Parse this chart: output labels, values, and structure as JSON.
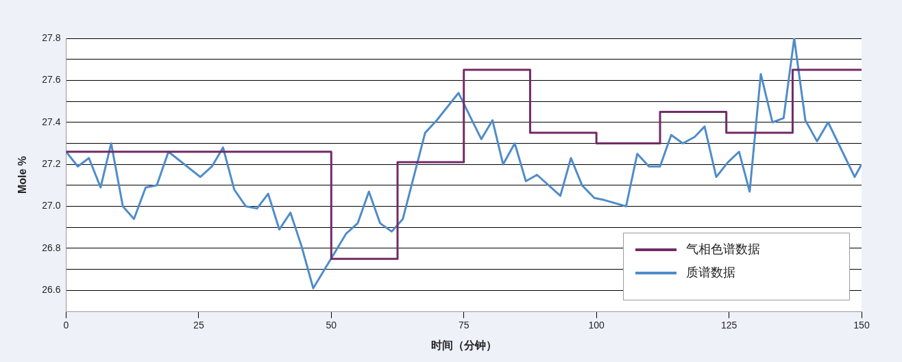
{
  "chart_data": {
    "type": "line",
    "xlabel": "时间（分钟）",
    "ylabel": "Mole %",
    "xlim": [
      0,
      150
    ],
    "xticks": [
      0,
      25,
      50,
      75,
      100,
      125,
      150
    ],
    "ylim": [
      26.5,
      27.8
    ],
    "yticks": [
      26.6,
      {
        "value": 26.7,
        "label": null
      },
      26.8,
      {
        "value": 26.9,
        "label": null
      },
      {
        "value": 27.0,
        "label": "27.0"
      },
      {
        "value": 27.1,
        "label": null
      },
      27.2,
      {
        "value": 27.3,
        "label": null
      },
      27.4,
      {
        "value": 27.5,
        "label": null
      },
      27.6,
      {
        "value": 27.7,
        "label": null
      },
      27.8
    ],
    "grid": "y",
    "legend": "bottom right",
    "marker": "none",
    "line_style": "solid",
    "series": [
      {
        "name": "气相色谱数据",
        "type": "step",
        "color": "#722a66",
        "x": [
          0,
          50,
          62.5,
          75,
          87.5,
          100,
          112,
          124.5,
          137,
          150
        ],
        "values": [
          27.26,
          26.75,
          27.21,
          27.65,
          27.35,
          27.3,
          27.45,
          27.35,
          27.65,
          27.65
        ]
      },
      {
        "name": "质谱数据",
        "color": "#4f8cc9",
        "x": [
          0,
          2.2,
          4.3,
          6.5,
          8.5,
          10.7,
          12.8,
          15,
          17.1,
          19.3,
          25.3,
          27.5,
          29.6,
          31.7,
          33.9,
          36,
          38.1,
          40.2,
          42.3,
          44.4,
          46.6,
          52.8,
          55,
          57.1,
          59.2,
          61.4,
          63.5,
          67.7,
          69.9,
          74,
          78.3,
          80.4,
          82.4,
          84.6,
          86.7,
          88.8,
          93.2,
          95.2,
          97.3,
          99.6,
          101.5,
          105.6,
          107.7,
          109.9,
          112,
          114.1,
          116.3,
          118.5,
          120.4,
          122.6,
          124.8,
          126.9,
          128.9,
          131,
          133.2,
          135.3,
          137.3,
          139.4,
          141.6,
          143.7,
          148.7,
          150
        ],
        "values": [
          27.26,
          27.19,
          27.23,
          27.09,
          27.3,
          27.0,
          26.94,
          27.09,
          27.1,
          27.26,
          27.14,
          27.19,
          27.28,
          27.08,
          27.0,
          26.99,
          27.06,
          26.89,
          26.97,
          26.81,
          26.61,
          26.87,
          26.92,
          27.07,
          26.92,
          26.88,
          26.94,
          27.35,
          27.41,
          27.54,
          27.32,
          27.41,
          27.2,
          27.3,
          27.12,
          27.15,
          27.05,
          27.23,
          27.1,
          27.04,
          27.03,
          27.0,
          27.25,
          27.19,
          27.19,
          27.34,
          27.3,
          27.33,
          27.38,
          27.14,
          27.21,
          27.26,
          27.07,
          27.63,
          27.4,
          27.42,
          27.8,
          27.41,
          27.31,
          27.4,
          27.14,
          27.2
        ]
      }
    ]
  }
}
